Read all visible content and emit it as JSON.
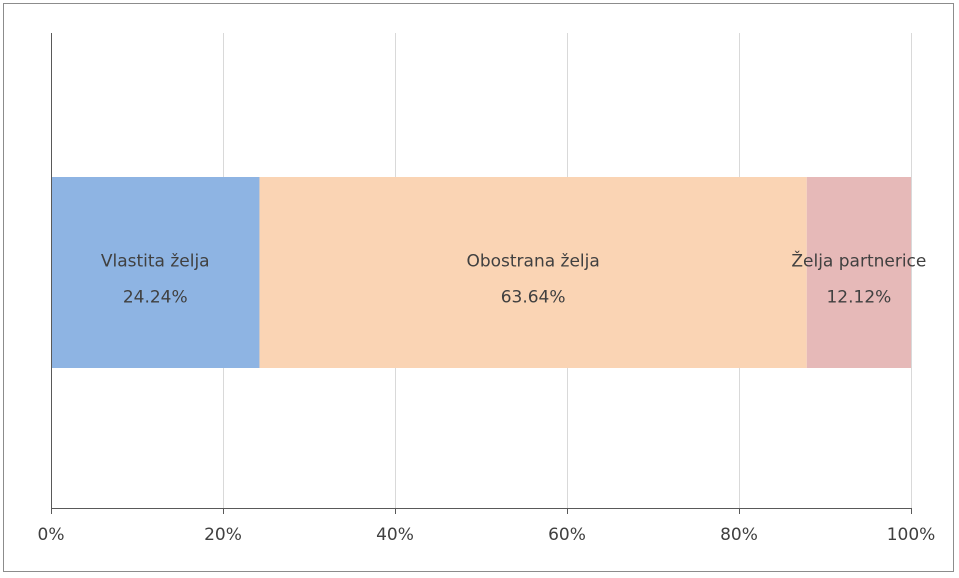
{
  "chart_data": {
    "type": "bar",
    "orientation": "horizontal",
    "stacking": "percent",
    "categories": [
      ""
    ],
    "series": [
      {
        "name": "Vlastita želja",
        "values": [
          24.24
        ],
        "label": "24.24%",
        "color": "#8eb4e3"
      },
      {
        "name": "Obostrana želja",
        "values": [
          63.64
        ],
        "label": "63.64%",
        "color": "#fad4b4"
      },
      {
        "name": "Želja partnerice",
        "values": [
          12.12
        ],
        "label": "12.12%",
        "color": "#e6b9b8"
      }
    ],
    "xlim": [
      0,
      100
    ],
    "xticks": [
      "0%",
      "20%",
      "40%",
      "60%",
      "80%",
      "100%"
    ],
    "xtick_values": [
      0,
      20,
      40,
      60,
      80,
      100
    ],
    "grid": "vertical",
    "gridline_color": "#d9d9d9",
    "axis_color": "#595959",
    "label_color": "#404040",
    "legend": "none",
    "title": "",
    "xlabel": "",
    "ylabel": ""
  }
}
